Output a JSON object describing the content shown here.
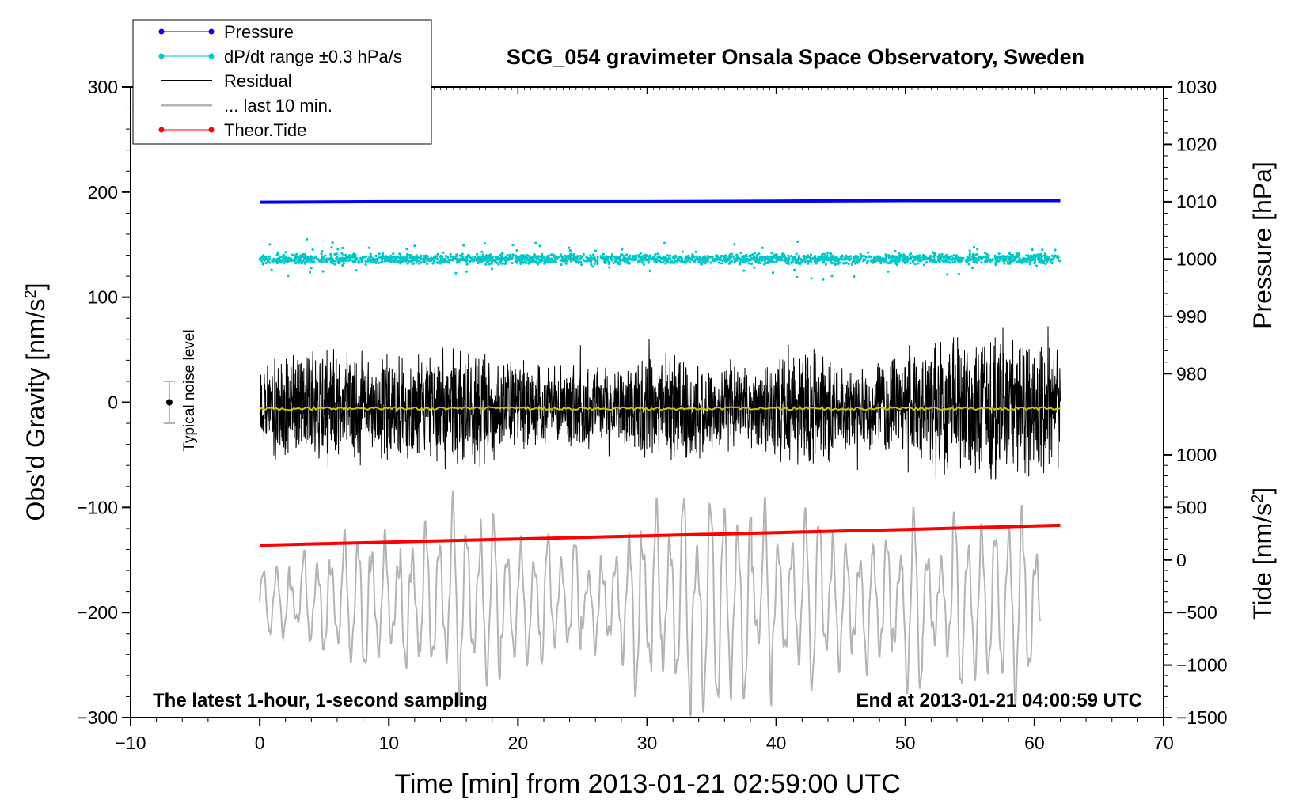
{
  "chart_data": {
    "type": "line",
    "title": "SCG_054 gravimeter Onsala Space Observatory, Sweden",
    "xlabel": "Time [min] from 2013-01-21 02:59:00 UTC",
    "ylabel_left_main": "Obs’d Gravity [nm/s",
    "ylabel_left_sup": "2",
    "ylabel_left_end": "]",
    "ylabel_right_top": "Pressure [hPa]",
    "ylabel_right_bottom_main": "Tide [nm/s",
    "ylabel_right_bottom_sup": "2",
    "ylabel_right_bottom_end": "]",
    "xlim": [
      -10,
      70
    ],
    "ylim_left": [
      -300,
      300
    ],
    "ylim_pressure": [
      920,
      1030
    ],
    "ylim_tide": [
      -1500,
      4500
    ],
    "xticks": [
      -10,
      0,
      10,
      20,
      30,
      40,
      50,
      60,
      70
    ],
    "xtick_labels": [
      "−10",
      "0",
      "10",
      "20",
      "30",
      "40",
      "50",
      "60",
      "70"
    ],
    "yticks_left": [
      -300,
      -200,
      -100,
      0,
      100,
      200,
      300
    ],
    "ytick_labels_left": [
      "−300",
      "−200",
      "−100",
      "0",
      "100",
      "200",
      "300"
    ],
    "yticks_pressure": [
      980,
      990,
      1000,
      1010,
      1020,
      1030
    ],
    "ytick_labels_pressure": [
      "980",
      "990",
      "1000",
      "1010",
      "1020",
      "1030"
    ],
    "yticks_tide": [
      -1500,
      -1000,
      -500,
      0,
      500,
      1000
    ],
    "ytick_labels_tide": [
      "−1500",
      "−1000",
      "−500",
      "0",
      "500",
      "1000"
    ],
    "legend": {
      "position": "top-left",
      "entries": [
        {
          "label": "Pressure",
          "color": "#0000ff",
          "marker": true
        },
        {
          "label": "dP/dt range ±0.3 hPa/s",
          "color": "#00c8c8",
          "marker": true
        },
        {
          "label": "Residual",
          "color": "#000000",
          "marker": false
        },
        {
          "label": "... last 10 min.",
          "color": "#b4b4b4",
          "marker": false
        },
        {
          "label": "Theor.Tide",
          "color": "#ff0000",
          "marker": true
        }
      ]
    },
    "annotations": {
      "bottom_left": "The latest 1-hour, 1-second sampling",
      "bottom_right": "End at 2013-01-21 04:00:59 UTC",
      "noise_label": "Typical noise level"
    },
    "noise_bar": {
      "x": -7,
      "center": 0,
      "half_range": 20
    },
    "series": [
      {
        "name": "Pressure",
        "color": "#0000ff",
        "axis": "pressure",
        "x": [
          0,
          10,
          20,
          30,
          40,
          50,
          62
        ],
        "values": [
          1009.9,
          1010.0,
          1010.0,
          1010.0,
          1010.1,
          1010.2,
          1010.2
        ]
      },
      {
        "name": "dP/dt range ±0.3 hPa/s",
        "color": "#00c8c8",
        "axis": "pressure",
        "center": 1000,
        "spread": 0.8,
        "range": [
          0,
          62
        ]
      },
      {
        "name": "Residual",
        "color": "#000000",
        "axis": "left",
        "range": [
          0,
          62
        ],
        "envelope_x": [
          0,
          5,
          10,
          15,
          18,
          22,
          26,
          30,
          34,
          38,
          42,
          46,
          50,
          54,
          57,
          60,
          62
        ],
        "envelope": [
          55,
          60,
          55,
          65,
          55,
          45,
          40,
          55,
          50,
          40,
          70,
          40,
          65,
          75,
          90,
          70,
          75
        ],
        "offset": -5
      },
      {
        "name": "Residual smooth",
        "color": "#c8c800",
        "axis": "left",
        "x": [
          0,
          62
        ],
        "values": [
          -6,
          -6
        ]
      },
      {
        "name": "... last 10 min.",
        "color": "#b4b4b4",
        "axis": "tide",
        "range": [
          0,
          60.5
        ],
        "envelope_x": [
          0,
          5,
          10,
          15,
          20,
          25,
          30,
          35,
          40,
          45,
          50,
          55,
          60
        ],
        "envelope": [
          300,
          600,
          900,
          1000,
          700,
          600,
          1100,
          1000,
          900,
          800,
          900,
          900,
          1000
        ],
        "center": -400
      },
      {
        "name": "Theor.Tide",
        "color": "#ff0000",
        "axis": "tide",
        "x": [
          0,
          10,
          20,
          30,
          40,
          50,
          62
        ],
        "values": [
          140,
          170,
          200,
          230,
          260,
          290,
          330
        ]
      }
    ]
  }
}
